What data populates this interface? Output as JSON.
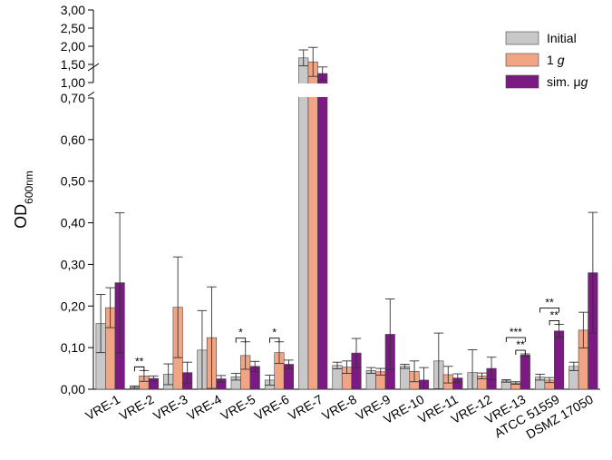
{
  "chart_data": {
    "type": "bar",
    "ylabel": "OD",
    "ylabel_sub": "600nm",
    "categories": [
      "VRE-1",
      "VRE-2",
      "VRE-3",
      "VRE-4",
      "VRE-5",
      "VRE-6",
      "VRE-7",
      "VRE-8",
      "VRE-9",
      "VRE-10",
      "VRE-11",
      "VRE-12",
      "VRE-13",
      "ATCC 51559",
      "DSMZ 17050"
    ],
    "series": [
      {
        "name": "Initial",
        "legend": [
          "Initial"
        ],
        "color": "#c8c8c8",
        "values": [
          0.158,
          0.005,
          0.036,
          0.094,
          0.03,
          0.022,
          1.68,
          0.057,
          0.045,
          0.055,
          0.068,
          0.04,
          0.02,
          0.029,
          0.055
        ],
        "errors": [
          0.07,
          0.003,
          0.025,
          0.095,
          0.008,
          0.012,
          0.22,
          0.008,
          0.007,
          0.005,
          0.067,
          0.055,
          0.003,
          0.007,
          0.01
        ]
      },
      {
        "name": "1 g",
        "legend": [
          "1 ",
          "g"
        ],
        "color": "#f2a584",
        "values": [
          0.196,
          0.032,
          0.197,
          0.124,
          0.081,
          0.088,
          1.57,
          0.053,
          0.042,
          0.043,
          0.035,
          0.032,
          0.015,
          0.022,
          0.142
        ],
        "errors": [
          0.048,
          0.013,
          0.121,
          0.122,
          0.033,
          0.026,
          0.4,
          0.015,
          0.008,
          0.025,
          0.02,
          0.007,
          0.003,
          0.006,
          0.043
        ]
      },
      {
        "name": "sim. μg",
        "legend": [
          "sim. μ",
          "g"
        ],
        "color": "#7b1a82",
        "values": [
          0.256,
          0.026,
          0.04,
          0.025,
          0.055,
          0.06,
          1.25,
          0.087,
          0.132,
          0.022,
          0.027,
          0.05,
          0.082,
          0.14,
          0.28
        ],
        "errors": [
          0.168,
          0.006,
          0.025,
          0.008,
          0.012,
          0.01,
          0.18,
          0.035,
          0.085,
          0.03,
          0.01,
          0.027,
          0.003,
          0.016,
          0.145
        ]
      }
    ],
    "yaxis_lower": {
      "min": 0,
      "max": 0.7,
      "ticks": [
        "0,00",
        "0,10",
        "0,20",
        "0,30",
        "0,40",
        "0,50",
        "0,60",
        "0,70"
      ]
    },
    "yaxis_upper": {
      "min": 1.0,
      "max": 3.0,
      "ticks": [
        "1,00",
        "1,50",
        "2,00",
        "2,50",
        "3,00"
      ]
    },
    "axis_break": [
      0.7,
      1.0
    ],
    "significance": [
      {
        "category": "VRE-2",
        "from_series": 0,
        "to_series": 1,
        "label": "**"
      },
      {
        "category": "VRE-5",
        "from_series": 0,
        "to_series": 1,
        "label": "*"
      },
      {
        "category": "VRE-6",
        "from_series": 0,
        "to_series": 1,
        "label": "*"
      },
      {
        "category": "VRE-13",
        "from_series": 1,
        "to_series": 2,
        "label": "**"
      },
      {
        "category": "VRE-13",
        "from_series": 0,
        "to_series": 2,
        "label": "***"
      },
      {
        "category": "ATCC 51559",
        "from_series": 1,
        "to_series": 2,
        "label": "**"
      },
      {
        "category": "ATCC 51559",
        "from_series": 0,
        "to_series": 2,
        "label": "**"
      }
    ],
    "legend_position": "top-right"
  }
}
